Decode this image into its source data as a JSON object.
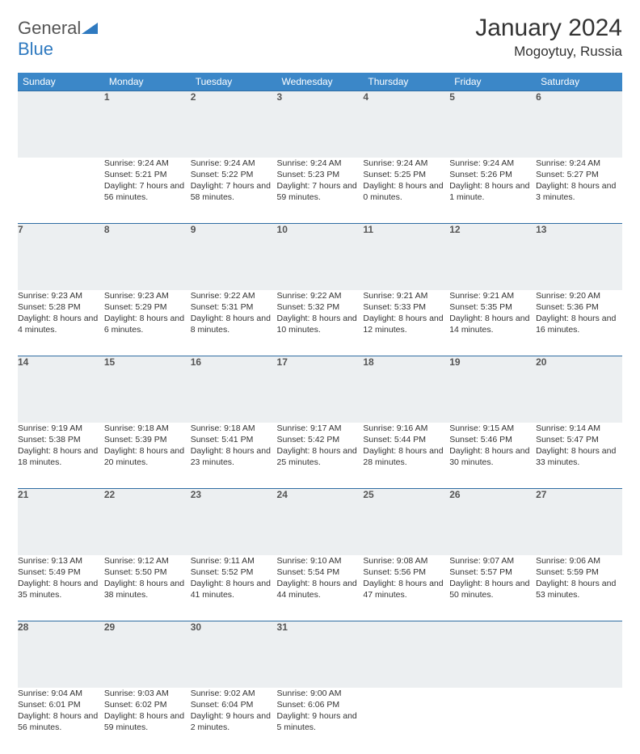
{
  "brand": {
    "part1": "General",
    "part2": "Blue"
  },
  "title": "January 2024",
  "location": "Mogoytuy, Russia",
  "colors": {
    "header_bg": "#3b87c8",
    "header_text": "#ffffff",
    "rule": "#2f6da3",
    "daynum_bg": "#eceff1",
    "logo_blue": "#2f7ac0"
  },
  "day_headers": [
    "Sunday",
    "Monday",
    "Tuesday",
    "Wednesday",
    "Thursday",
    "Friday",
    "Saturday"
  ],
  "weeks": [
    [
      null,
      {
        "n": "1",
        "sr": "9:24 AM",
        "ss": "5:21 PM",
        "dl": "7 hours and 56 minutes."
      },
      {
        "n": "2",
        "sr": "9:24 AM",
        "ss": "5:22 PM",
        "dl": "7 hours and 58 minutes."
      },
      {
        "n": "3",
        "sr": "9:24 AM",
        "ss": "5:23 PM",
        "dl": "7 hours and 59 minutes."
      },
      {
        "n": "4",
        "sr": "9:24 AM",
        "ss": "5:25 PM",
        "dl": "8 hours and 0 minutes."
      },
      {
        "n": "5",
        "sr": "9:24 AM",
        "ss": "5:26 PM",
        "dl": "8 hours and 1 minute."
      },
      {
        "n": "6",
        "sr": "9:24 AM",
        "ss": "5:27 PM",
        "dl": "8 hours and 3 minutes."
      }
    ],
    [
      {
        "n": "7",
        "sr": "9:23 AM",
        "ss": "5:28 PM",
        "dl": "8 hours and 4 minutes."
      },
      {
        "n": "8",
        "sr": "9:23 AM",
        "ss": "5:29 PM",
        "dl": "8 hours and 6 minutes."
      },
      {
        "n": "9",
        "sr": "9:22 AM",
        "ss": "5:31 PM",
        "dl": "8 hours and 8 minutes."
      },
      {
        "n": "10",
        "sr": "9:22 AM",
        "ss": "5:32 PM",
        "dl": "8 hours and 10 minutes."
      },
      {
        "n": "11",
        "sr": "9:21 AM",
        "ss": "5:33 PM",
        "dl": "8 hours and 12 minutes."
      },
      {
        "n": "12",
        "sr": "9:21 AM",
        "ss": "5:35 PM",
        "dl": "8 hours and 14 minutes."
      },
      {
        "n": "13",
        "sr": "9:20 AM",
        "ss": "5:36 PM",
        "dl": "8 hours and 16 minutes."
      }
    ],
    [
      {
        "n": "14",
        "sr": "9:19 AM",
        "ss": "5:38 PM",
        "dl": "8 hours and 18 minutes."
      },
      {
        "n": "15",
        "sr": "9:18 AM",
        "ss": "5:39 PM",
        "dl": "8 hours and 20 minutes."
      },
      {
        "n": "16",
        "sr": "9:18 AM",
        "ss": "5:41 PM",
        "dl": "8 hours and 23 minutes."
      },
      {
        "n": "17",
        "sr": "9:17 AM",
        "ss": "5:42 PM",
        "dl": "8 hours and 25 minutes."
      },
      {
        "n": "18",
        "sr": "9:16 AM",
        "ss": "5:44 PM",
        "dl": "8 hours and 28 minutes."
      },
      {
        "n": "19",
        "sr": "9:15 AM",
        "ss": "5:46 PM",
        "dl": "8 hours and 30 minutes."
      },
      {
        "n": "20",
        "sr": "9:14 AM",
        "ss": "5:47 PM",
        "dl": "8 hours and 33 minutes."
      }
    ],
    [
      {
        "n": "21",
        "sr": "9:13 AM",
        "ss": "5:49 PM",
        "dl": "8 hours and 35 minutes."
      },
      {
        "n": "22",
        "sr": "9:12 AM",
        "ss": "5:50 PM",
        "dl": "8 hours and 38 minutes."
      },
      {
        "n": "23",
        "sr": "9:11 AM",
        "ss": "5:52 PM",
        "dl": "8 hours and 41 minutes."
      },
      {
        "n": "24",
        "sr": "9:10 AM",
        "ss": "5:54 PM",
        "dl": "8 hours and 44 minutes."
      },
      {
        "n": "25",
        "sr": "9:08 AM",
        "ss": "5:56 PM",
        "dl": "8 hours and 47 minutes."
      },
      {
        "n": "26",
        "sr": "9:07 AM",
        "ss": "5:57 PM",
        "dl": "8 hours and 50 minutes."
      },
      {
        "n": "27",
        "sr": "9:06 AM",
        "ss": "5:59 PM",
        "dl": "8 hours and 53 minutes."
      }
    ],
    [
      {
        "n": "28",
        "sr": "9:04 AM",
        "ss": "6:01 PM",
        "dl": "8 hours and 56 minutes."
      },
      {
        "n": "29",
        "sr": "9:03 AM",
        "ss": "6:02 PM",
        "dl": "8 hours and 59 minutes."
      },
      {
        "n": "30",
        "sr": "9:02 AM",
        "ss": "6:04 PM",
        "dl": "9 hours and 2 minutes."
      },
      {
        "n": "31",
        "sr": "9:00 AM",
        "ss": "6:06 PM",
        "dl": "9 hours and 5 minutes."
      },
      null,
      null,
      null
    ]
  ],
  "labels": {
    "sunrise": "Sunrise:",
    "sunset": "Sunset:",
    "daylight": "Daylight:"
  }
}
